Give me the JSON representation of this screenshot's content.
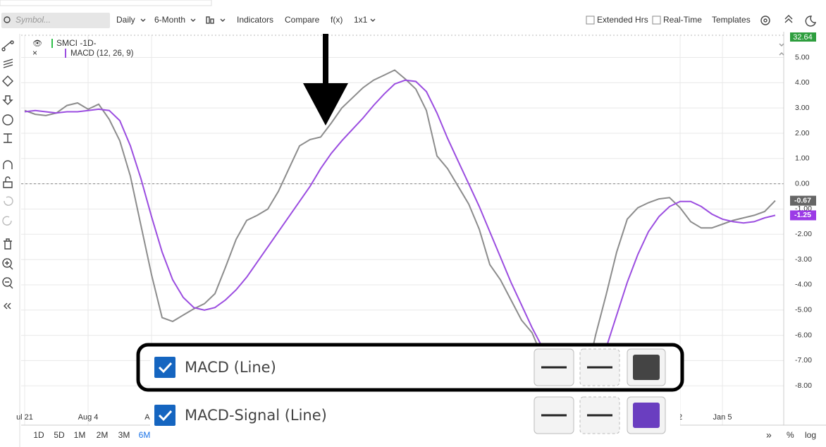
{
  "toolbar": {
    "symbol": "Symbol...",
    "interval": "Daily",
    "range": "6-Month",
    "indicators": "Indicators",
    "compare": "Compare",
    "fx": "f(x)",
    "layout": "1x1",
    "extended_hours": "Extended Hrs",
    "real_time": "Real-Time",
    "templates": "Templates"
  },
  "legend": {
    "symbol": "SMCI -1D-",
    "indicator": "MACD (12, 26, 9)",
    "price": "32.64"
  },
  "chart_data": {
    "type": "line",
    "categories": [
      "ul 21",
      null,
      null,
      null,
      null,
      null,
      "Aug 4",
      null,
      null,
      null,
      null,
      null,
      "Aug",
      null,
      null,
      null,
      null,
      null,
      null,
      null,
      null,
      null,
      null,
      null,
      null,
      null,
      null,
      null,
      null,
      null,
      null,
      null,
      null,
      null,
      null,
      null,
      null,
      null,
      null,
      null,
      null,
      null,
      null,
      null,
      null,
      null,
      null,
      null,
      null,
      null,
      null,
      null,
      null,
      null,
      null,
      null,
      null,
      null,
      null,
      null,
      null,
      null,
      "2",
      null,
      null,
      null,
      "Jan 5",
      null,
      null,
      null,
      null,
      null
    ],
    "series": [
      {
        "color": "#8c8c8c",
        "tag": "-0.67",
        "tag_color": "#666666",
        "values": [
          2.9,
          2.75,
          2.7,
          2.8,
          3.1,
          3.2,
          2.95,
          3.15,
          2.55,
          1.7,
          0.3,
          -1.65,
          -3.6,
          -5.3,
          -5.45,
          -5.2,
          -4.95,
          -4.75,
          -4.35,
          -3.3,
          -2.2,
          -1.45,
          -1.25,
          -1.0,
          -0.3,
          0.6,
          1.5,
          1.75,
          1.85,
          2.4,
          3.0,
          3.4,
          3.8,
          4.1,
          4.3,
          4.5,
          4.15,
          3.75,
          2.9,
          1.1,
          0.6,
          -0.1,
          -0.8,
          -1.8,
          -3.2,
          -3.8,
          -4.6,
          -5.4,
          -5.9,
          -6.9,
          -8.0,
          -8.6,
          -8.5,
          -7.9,
          -6.0,
          -4.4,
          -2.7,
          -1.4,
          -0.95,
          -0.75,
          -0.6,
          -0.55,
          -0.95,
          -1.5,
          -1.75,
          -1.75,
          -1.6,
          -1.45,
          -1.35,
          -1.25,
          -1.1,
          -0.67
        ]
      },
      {
        "color": "#9b4de0",
        "tag": "-1.25",
        "tag_color": "#9b3ae6",
        "values": [
          2.85,
          2.9,
          2.85,
          2.8,
          2.85,
          2.85,
          2.9,
          2.95,
          2.9,
          2.5,
          1.5,
          0.2,
          -1.3,
          -2.7,
          -3.8,
          -4.5,
          -4.9,
          -5.0,
          -4.9,
          -4.6,
          -4.2,
          -3.7,
          -3.1,
          -2.5,
          -1.9,
          -1.3,
          -0.7,
          -0.1,
          0.6,
          1.2,
          1.7,
          2.15,
          2.6,
          3.1,
          3.55,
          3.95,
          4.1,
          4.05,
          3.65,
          2.8,
          1.8,
          0.9,
          0.0,
          -0.9,
          -1.9,
          -2.9,
          -3.9,
          -4.8,
          -5.7,
          -6.5,
          -7.2,
          -7.9,
          -8.3,
          -8.3,
          -7.6,
          -6.5,
          -5.2,
          -3.9,
          -2.8,
          -1.9,
          -1.3,
          -0.9,
          -0.7,
          -0.7,
          -0.9,
          -1.2,
          -1.4,
          -1.5,
          -1.55,
          -1.5,
          -1.35,
          -1.25
        ]
      }
    ],
    "ylim": [
      -9.5,
      5.6
    ],
    "yticks": [
      {
        "value": 5,
        "label": "5.00"
      },
      {
        "value": 4,
        "label": "4.00"
      },
      {
        "value": 3,
        "label": "3.00"
      },
      {
        "value": 2,
        "label": "2.00"
      },
      {
        "value": 1,
        "label": "1.00"
      },
      {
        "value": 0,
        "label": "0.00"
      },
      {
        "value": -1,
        "label": "-1.00"
      },
      {
        "value": -2,
        "label": "-2.00"
      },
      {
        "value": -3,
        "label": "-3.00"
      },
      {
        "value": -4,
        "label": "-4.00"
      },
      {
        "value": -5,
        "label": "-5.00"
      },
      {
        "value": -6,
        "label": "-6.00"
      },
      {
        "value": -7,
        "label": "-7.00"
      },
      {
        "value": -8,
        "label": "-8.00"
      }
    ],
    "grid": true,
    "zero_line": true
  },
  "periods": [
    "1D",
    "5D",
    "1M",
    "2M",
    "3M",
    "6M"
  ],
  "footer": {
    "percent": "%",
    "log": "log"
  },
  "style_panel": {
    "rows": [
      {
        "label": "MACD (Line)",
        "checked": true,
        "color": "#444444"
      },
      {
        "label": "MACD-Signal (Line)",
        "checked": true,
        "color": "#6a3ec0"
      }
    ]
  }
}
